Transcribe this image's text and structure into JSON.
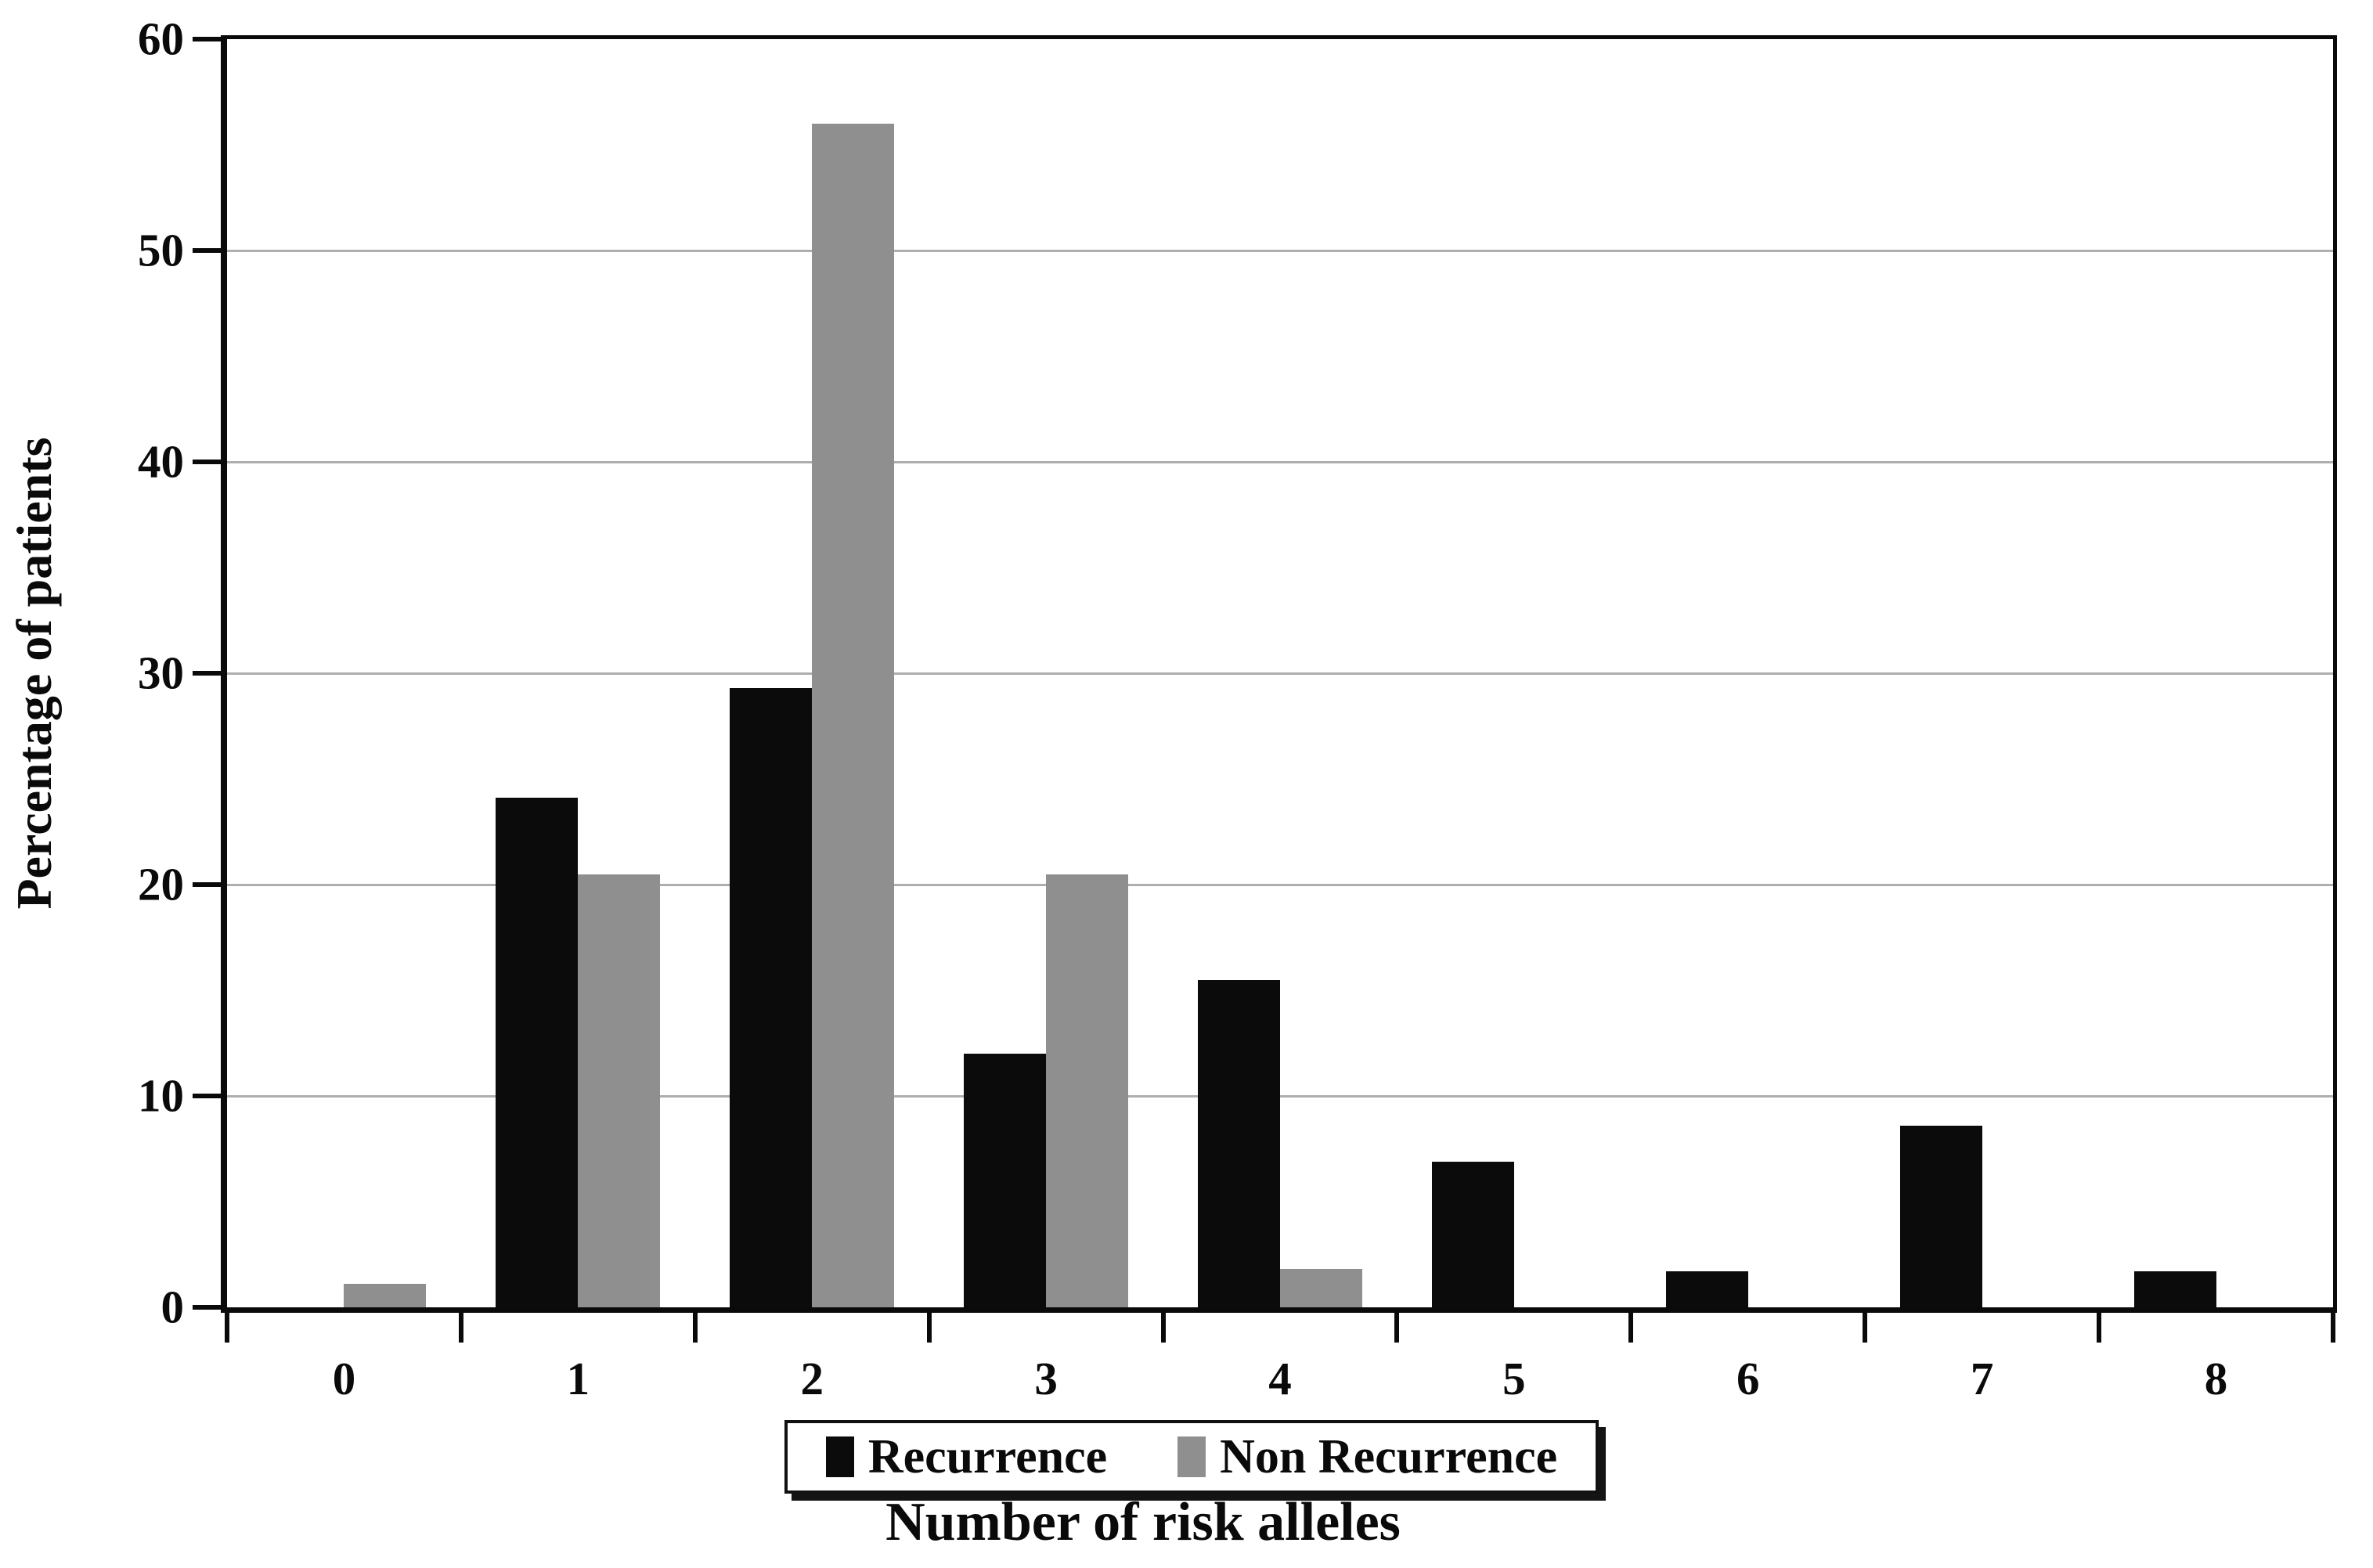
{
  "figure": {
    "background_color": "#ffffff",
    "axis_color": "#0a0a0a",
    "gridline_color": "#aeaeae"
  },
  "chart_data": {
    "type": "bar",
    "title": "",
    "xlabel": "Number of risk alleles",
    "ylabel": "Percentage of patients",
    "categories": [
      "0",
      "1",
      "2",
      "3",
      "4",
      "5",
      "6",
      "7",
      "8"
    ],
    "series": [
      {
        "name": "Recurrence",
        "color": "#0b0b0b",
        "values": [
          0,
          24.1,
          29.3,
          12.0,
          15.5,
          6.9,
          1.7,
          8.6,
          1.7
        ]
      },
      {
        "name": "Non Recurrence",
        "color": "#8f8f8f",
        "values": [
          1.1,
          20.5,
          56.0,
          20.5,
          1.8,
          0,
          0,
          0,
          0
        ]
      }
    ],
    "ylim": [
      0,
      60
    ],
    "yticks": [
      0,
      10,
      20,
      30,
      40,
      50,
      60
    ],
    "ytick_step": 10,
    "grid": "horizontal",
    "legend_position": "bottom",
    "plot_frame": true
  }
}
